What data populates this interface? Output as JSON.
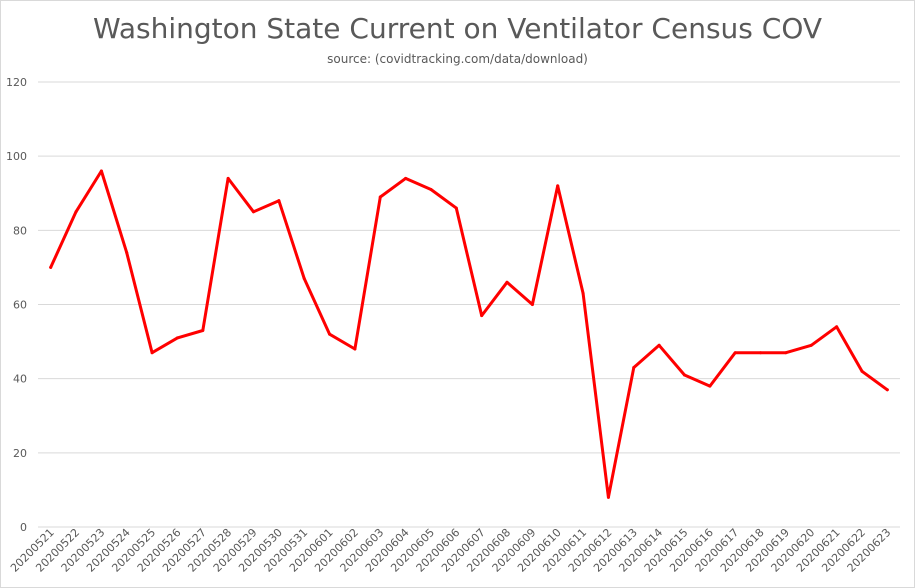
{
  "chart_data": {
    "type": "line",
    "title": "Washington State Current on Ventilator Census COV",
    "subtitle": "source:  (covidtracking.com/data/download)",
    "xlabel": "",
    "ylabel": "",
    "ylim": [
      0,
      120
    ],
    "yticks": [
      "0",
      "20",
      "40",
      "60",
      "80",
      "100",
      "120"
    ],
    "grid": true,
    "legend": "none",
    "series_color": "#ff0000",
    "grid_color": "#d9d9d9",
    "text_color": "#595959",
    "categories": [
      "20200521",
      "20200522",
      "20200523",
      "20200524",
      "20200525",
      "20200526",
      "20200527",
      "20200528",
      "20200529",
      "20200530",
      "20200531",
      "20200601",
      "20200602",
      "20200603",
      "20200604",
      "20200605",
      "20200606",
      "20200607",
      "20200608",
      "20200609",
      "20200610",
      "20200611",
      "20200612",
      "20200613",
      "20200614",
      "20200615",
      "20200616",
      "20200617",
      "20200618",
      "20200619",
      "20200620",
      "20200621",
      "20200622",
      "20200623"
    ],
    "series": [
      {
        "values": [
          70,
          85,
          96,
          74,
          47,
          51,
          53,
          94,
          85,
          88,
          67,
          52,
          48,
          89,
          94,
          91,
          86,
          57,
          66,
          60,
          92,
          63,
          8,
          43,
          49,
          41,
          38,
          47,
          47,
          47,
          49,
          54,
          42,
          37
        ]
      }
    ]
  }
}
